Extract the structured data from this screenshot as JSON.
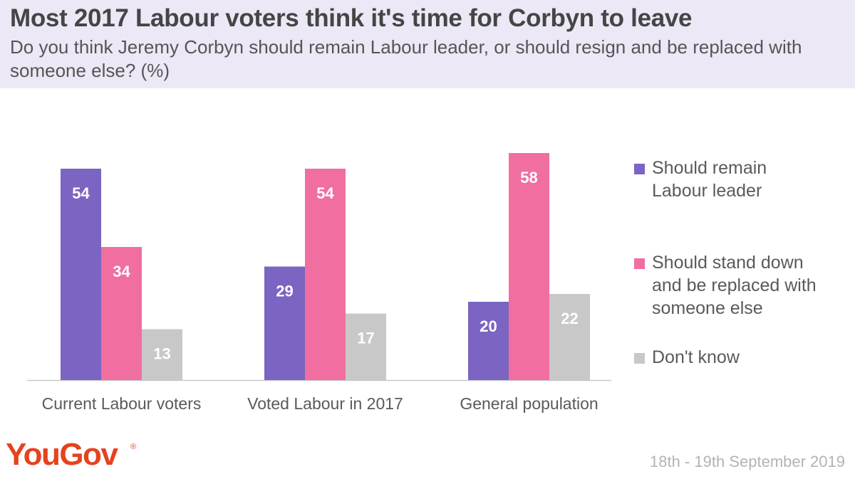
{
  "chart_data": {
    "type": "bar",
    "title": "Most 2017 Labour voters think it's time for Corbyn to leave",
    "subtitle": "Do you think Jeremy Corbyn should remain Labour leader, or should resign and be replaced with someone else? (%)",
    "categories": [
      "Current Labour voters",
      "Voted Labour in 2017",
      "General population"
    ],
    "series": [
      {
        "name": "Should remain Labour leader",
        "values": [
          54,
          29,
          20
        ],
        "color": "#7b64c2"
      },
      {
        "name": "Should stand down and be replaced with someone else",
        "values": [
          34,
          54,
          58
        ],
        "color": "#f06fa0"
      },
      {
        "name": "Don't know",
        "values": [
          13,
          17,
          22
        ],
        "color": "#c8c8c8"
      }
    ],
    "ylim": [
      0,
      60
    ],
    "grid": false,
    "legend_position": "right",
    "data_labels": true
  },
  "legend": [
    {
      "lines": [
        "Should remain",
        "Labour leader"
      ],
      "color": "#7b64c2"
    },
    {
      "lines": [
        "Should stand down",
        "and be replaced with",
        "someone else"
      ],
      "color": "#f06fa0"
    },
    {
      "lines": [
        "Don't know"
      ],
      "color": "#c8c8c8"
    }
  ],
  "brand": {
    "name": "YouGov",
    "registered_mark": "®",
    "color": "#e6421e"
  },
  "footer": {
    "date": "18th - 19th September 2019"
  },
  "colors": {
    "header_bg": "#ece8f5",
    "text": "#454545"
  }
}
